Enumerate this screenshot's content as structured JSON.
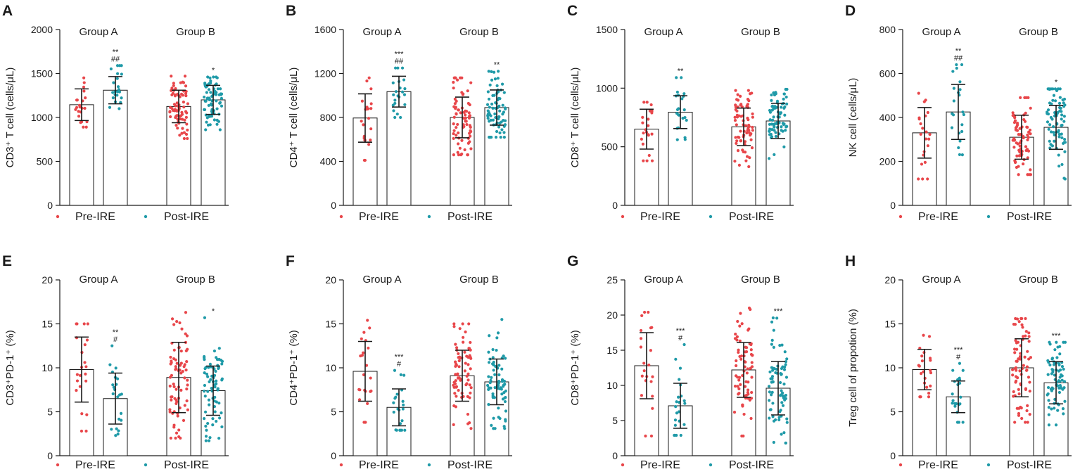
{
  "colors": {
    "pre": "#e8464a",
    "post": "#1f9aa8",
    "axis": "#1a1a1a"
  },
  "legend": {
    "pre_label": "Pre-IRE",
    "post_label": "Post-IRE"
  },
  "chart_data": [
    {
      "type": "bar",
      "panel": "A",
      "ylabel": "CD3⁺ T cell (cells/μL)",
      "ylim": [
        0,
        2000
      ],
      "yticks": [
        0,
        500,
        1000,
        1500,
        2000
      ],
      "groups": [
        "Group A",
        "Group B"
      ],
      "series": [
        {
          "name": "Pre-IRE",
          "values": [
            1145,
            1125
          ],
          "sd": [
            180,
            185
          ],
          "range": [
            [
              890,
              1450
            ],
            [
              760,
              1470
            ]
          ],
          "n": [
            22,
            75
          ],
          "sig": [
            "",
            ""
          ]
        },
        {
          "name": "Post-IRE",
          "values": [
            1310,
            1200
          ],
          "sd": [
            155,
            165
          ],
          "range": [
            [
              1100,
              1590
            ],
            [
              860,
              1460
            ]
          ],
          "n": [
            22,
            75
          ],
          "sig": [
            "**\n##",
            "*"
          ]
        }
      ]
    },
    {
      "type": "bar",
      "panel": "B",
      "ylabel": "CD4⁺ T cell (cells/μL)",
      "ylim": [
        0,
        1600
      ],
      "yticks": [
        0,
        400,
        800,
        1200,
        1600
      ],
      "groups": [
        "Group A",
        "Group B"
      ],
      "series": [
        {
          "name": "Pre-IRE",
          "values": [
            795,
            800
          ],
          "sd": [
            220,
            185
          ],
          "range": [
            [
              410,
              1160
            ],
            [
              460,
              1160
            ]
          ],
          "n": [
            22,
            75
          ],
          "sig": [
            "",
            ""
          ]
        },
        {
          "name": "Post-IRE",
          "values": [
            1035,
            890
          ],
          "sd": [
            140,
            160
          ],
          "range": [
            [
              800,
              1250
            ],
            [
              620,
              1220
            ]
          ],
          "n": [
            22,
            75
          ],
          "sig": [
            "***\n##",
            "**"
          ]
        }
      ]
    },
    {
      "type": "bar",
      "panel": "C",
      "ylabel": "CD8⁺ T cell (cells/μL)",
      "ylim": [
        0,
        1500
      ],
      "yticks": [
        0,
        500,
        1000,
        1500
      ],
      "groups": [
        "Group A",
        "Group B"
      ],
      "series": [
        {
          "name": "Pre-IRE",
          "values": [
            650,
            670
          ],
          "sd": [
            170,
            160
          ],
          "range": [
            [
              380,
              880
            ],
            [
              330,
              980
            ]
          ],
          "n": [
            22,
            75
          ],
          "sig": [
            "",
            ""
          ]
        },
        {
          "name": "Post-IRE",
          "values": [
            795,
            720
          ],
          "sd": [
            140,
            150
          ],
          "range": [
            [
              560,
              1090
            ],
            [
              400,
              990
            ]
          ],
          "n": [
            22,
            75
          ],
          "sig": [
            "**",
            ""
          ]
        }
      ]
    },
    {
      "type": "bar",
      "panel": "D",
      "ylabel": "NK cell (cells/μL)",
      "ylim": [
        0,
        800
      ],
      "yticks": [
        0,
        200,
        400,
        600,
        800
      ],
      "groups": [
        "Group A",
        "Group B"
      ],
      "series": [
        {
          "name": "Pre-IRE",
          "values": [
            330,
            310
          ],
          "sd": [
            115,
            100
          ],
          "range": [
            [
              120,
              510
            ],
            [
              140,
              490
            ]
          ],
          "n": [
            22,
            75
          ],
          "sig": [
            "",
            ""
          ]
        },
        {
          "name": "Post-IRE",
          "values": [
            425,
            355
          ],
          "sd": [
            125,
            100
          ],
          "range": [
            [
              230,
              640
            ],
            [
              120,
              530
            ]
          ],
          "n": [
            22,
            75
          ],
          "sig": [
            "**\n##",
            "*"
          ]
        }
      ]
    },
    {
      "type": "bar",
      "panel": "E",
      "ylabel": "CD3⁺PD-1⁺ (%)",
      "ylim": [
        0,
        20
      ],
      "yticks": [
        0,
        5,
        10,
        15,
        20
      ],
      "groups": [
        "Group A",
        "Group B"
      ],
      "series": [
        {
          "name": "Pre-IRE",
          "values": [
            9.8,
            8.9
          ],
          "sd": [
            3.7,
            4.0
          ],
          "range": [
            [
              2.8,
              15.0
            ],
            [
              2.0,
              16.3
            ]
          ],
          "n": [
            22,
            75
          ],
          "sig": [
            "",
            ""
          ]
        },
        {
          "name": "Post-IRE",
          "values": [
            6.5,
            7.4
          ],
          "sd": [
            2.9,
            2.8
          ],
          "range": [
            [
              2.3,
              12.5
            ],
            [
              1.7,
              15.7
            ]
          ],
          "n": [
            22,
            75
          ],
          "sig": [
            "**\n#",
            "*"
          ]
        }
      ]
    },
    {
      "type": "bar",
      "panel": "F",
      "ylabel": "CD4⁺PD-1⁺ (%)",
      "ylim": [
        0,
        20
      ],
      "yticks": [
        0,
        5,
        10,
        15,
        20
      ],
      "groups": [
        "Group A",
        "Group B"
      ],
      "series": [
        {
          "name": "Pre-IRE",
          "values": [
            9.6,
            9.1
          ],
          "sd": [
            3.4,
            2.9
          ],
          "range": [
            [
              3.8,
              15.4
            ],
            [
              3.1,
              15.0
            ]
          ],
          "n": [
            22,
            75
          ],
          "sig": [
            "",
            ""
          ]
        },
        {
          "name": "Post-IRE",
          "values": [
            5.5,
            8.4
          ],
          "sd": [
            2.1,
            2.6
          ],
          "range": [
            [
              2.9,
              9.7
            ],
            [
              3.1,
              15.5
            ]
          ],
          "n": [
            22,
            75
          ],
          "sig": [
            "***\n#",
            ""
          ]
        }
      ]
    },
    {
      "type": "bar",
      "panel": "G",
      "ylabel": "CD8⁺PD-1⁺ (%)",
      "ylim": [
        0,
        25
      ],
      "yticks": [
        0,
        5,
        10,
        15,
        20,
        25
      ],
      "groups": [
        "Group A",
        "Group B"
      ],
      "series": [
        {
          "name": "Pre-IRE",
          "values": [
            12.8,
            12.2
          ],
          "sd": [
            4.7,
            3.9
          ],
          "range": [
            [
              2.8,
              20.4
            ],
            [
              2.8,
              21.0
            ]
          ],
          "n": [
            22,
            75
          ],
          "sig": [
            "",
            ""
          ]
        },
        {
          "name": "Post-IRE",
          "values": [
            7.1,
            9.6
          ],
          "sd": [
            3.2,
            3.8
          ],
          "range": [
            [
              2.9,
              15.8
            ],
            [
              1.8,
              19.6
            ]
          ],
          "n": [
            22,
            75
          ],
          "sig": [
            "***\n#",
            "***"
          ]
        }
      ]
    },
    {
      "type": "bar",
      "panel": "H",
      "ylabel": "Treg cell of propotion (%)",
      "ylim": [
        0,
        20
      ],
      "yticks": [
        0,
        5,
        10,
        15,
        20
      ],
      "groups": [
        "Group A",
        "Group B"
      ],
      "series": [
        {
          "name": "Pre-IRE",
          "values": [
            9.8,
            10.0
          ],
          "sd": [
            2.3,
            3.3
          ],
          "range": [
            [
              6.7,
              13.7
            ],
            [
              3.8,
              15.6
            ]
          ],
          "n": [
            22,
            75
          ],
          "sig": [
            "",
            ""
          ]
        },
        {
          "name": "Post-IRE",
          "values": [
            6.7,
            8.3
          ],
          "sd": [
            1.8,
            2.4
          ],
          "range": [
            [
              3.8,
              10.5
            ],
            [
              3.5,
              12.9
            ]
          ],
          "n": [
            22,
            75
          ],
          "sig": [
            "***\n#",
            "***"
          ]
        }
      ]
    }
  ]
}
